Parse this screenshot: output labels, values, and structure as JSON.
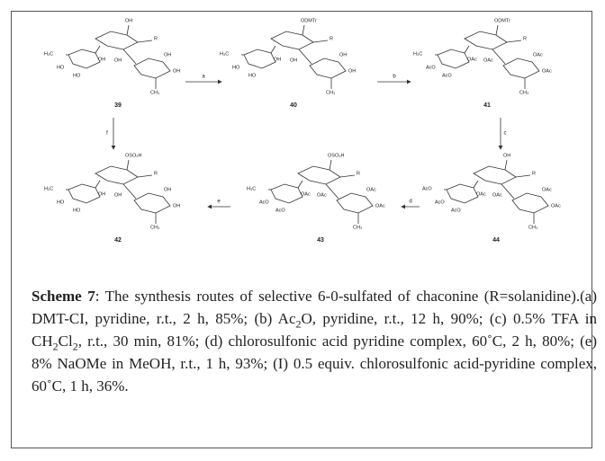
{
  "scheme": {
    "compounds": [
      {
        "number": "39",
        "labels": [
          "OH",
          "R",
          "H₃C",
          "HO",
          "HO",
          "OH",
          "OH",
          "OH",
          "OH",
          "CH₃"
        ]
      },
      {
        "number": "40",
        "labels": [
          "ODMTr",
          "R",
          "H₃C",
          "HO",
          "HO",
          "OH",
          "OH",
          "OH",
          "OH",
          "CH₃"
        ]
      },
      {
        "number": "41",
        "labels": [
          "ODMTr",
          "R",
          "H₃C",
          "AcO",
          "AcO",
          "OAc",
          "OAc",
          "OAc",
          "OAc",
          "CH₃"
        ]
      },
      {
        "number": "42",
        "labels": [
          "OSO₃H",
          "R",
          "H₃C",
          "HO",
          "HO",
          "OH",
          "OH",
          "OH",
          "OH",
          "CH₃"
        ]
      },
      {
        "number": "43",
        "labels": [
          "OSO₃H",
          "R",
          "H₃C",
          "AcO",
          "AcO",
          "OAc",
          "OAc",
          "OAc",
          "OAc",
          "CH₃"
        ]
      },
      {
        "number": "44",
        "labels": [
          "OH",
          "R",
          "AcO",
          "AcO",
          "AcO",
          "OAc",
          "OAc",
          "OAc",
          "OAc",
          "CH₃"
        ]
      }
    ],
    "steps": [
      {
        "label": "a"
      },
      {
        "label": "b"
      },
      {
        "label": "c"
      },
      {
        "label": "d"
      },
      {
        "label": "e"
      },
      {
        "label": "f"
      }
    ]
  },
  "caption": {
    "label": "Scheme 7",
    "runs": [
      ": The synthesis routes of selective 6-0-sulfated of chaconine (R=solanidine).(a) DMT-CI, pyridine, r.t., 2 h, 85%; (b) Ac",
      "2",
      "O, pyridine, r.t., 12 h, 90%; (c) 0.5% TFA in CH",
      "2",
      "Cl",
      "2",
      ", r.t., 30 min, 81%; (d) chlorosulfonic acid pyridine complex, 60˚C, 2 h, 80%; (e) 8% NaOMe in MeOH, r.t., 1 h, 93%; (I) 0.5 equiv. chlorosulfonic acid-pyridine complex, 60˚C, 1 h, 36%."
    ]
  }
}
